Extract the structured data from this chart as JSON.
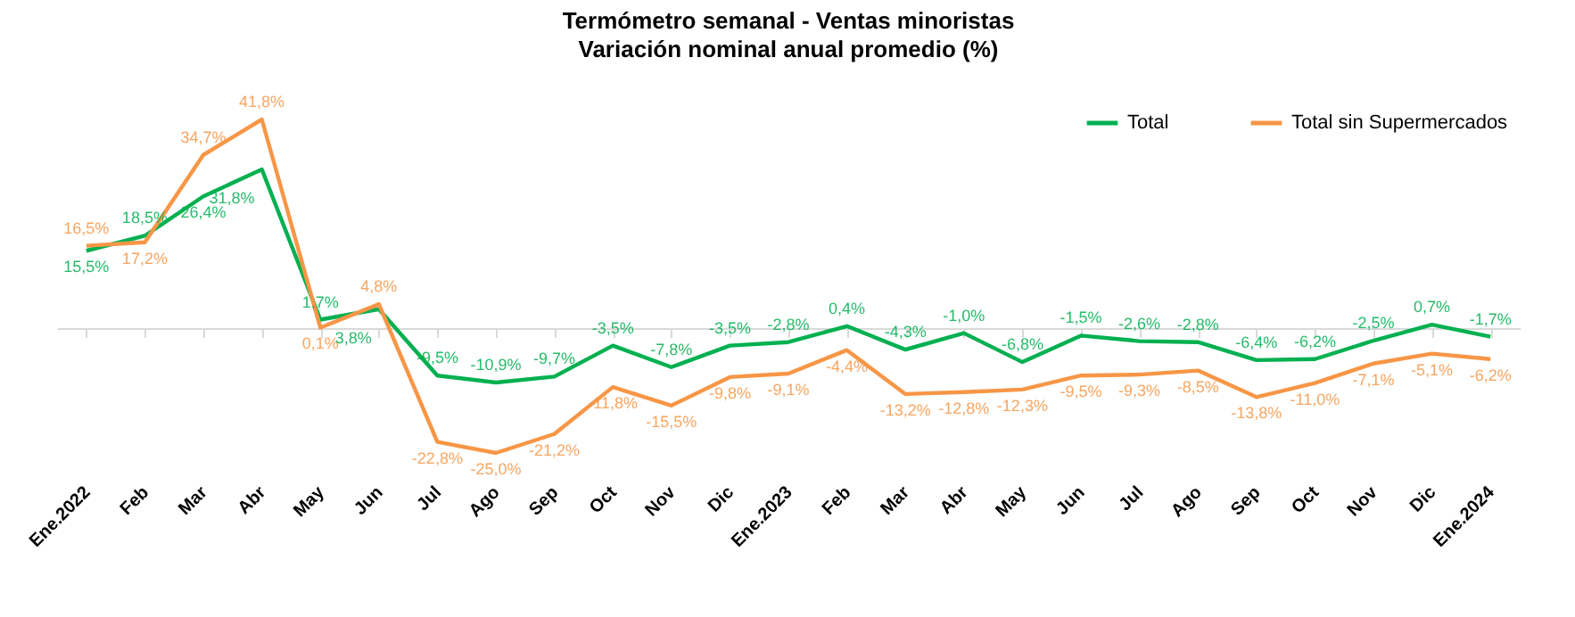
{
  "chart_data": {
    "type": "line",
    "title": "Termómetro semanal - Ventas minoristas",
    "subtitle": "Variación nominal anual promedio (%)",
    "categories": [
      "Ene.2022",
      "Feb",
      "Mar",
      "Abr",
      "May",
      "Jun",
      "Jul",
      "Ago",
      "Sep",
      "Oct",
      "Nov",
      "Dic",
      "Ene.2023",
      "Feb",
      "Mar",
      "Abr",
      "May",
      "Jun",
      "Jul",
      "Ago",
      "Sep",
      "Oct",
      "Nov",
      "Dic",
      "Ene.2024"
    ],
    "series": [
      {
        "name": "Total",
        "color": "#00b050",
        "values": [
          15.5,
          18.5,
          26.4,
          31.8,
          1.7,
          3.8,
          -9.5,
          -10.9,
          -9.7,
          -3.5,
          -7.8,
          -3.5,
          -2.8,
          0.4,
          -4.3,
          -1.0,
          -6.8,
          -1.5,
          -2.6,
          -2.8,
          -6.4,
          -6.2,
          -2.5,
          0.7,
          -1.7
        ],
        "value_labels": [
          "15,5%",
          "18,5%",
          "26,4%",
          "31,8%",
          "1,7%",
          "3,8%",
          "-9,5%",
          "-10,9%",
          "-9,7%",
          "-3,5%",
          "-7,8%",
          "-3,5%",
          "-2,8%",
          "0,4%",
          "-4,3%",
          "-1,0%",
          "-6,8%",
          "-1,5%",
          "-2,6%",
          "-2,8%",
          "-6,4%",
          "-6,2%",
          "-2,5%",
          "0,7%",
          "-1,7%"
        ]
      },
      {
        "name": "Total sin Supermercados",
        "color": "#f79646",
        "values": [
          16.5,
          17.2,
          34.7,
          41.8,
          0.1,
          4.8,
          -22.8,
          -25.0,
          -21.2,
          -11.8,
          -15.5,
          -9.8,
          -9.1,
          -4.4,
          -13.2,
          -12.8,
          -12.3,
          -9.5,
          -9.3,
          -8.5,
          -13.8,
          -11.0,
          -7.1,
          -5.1,
          -6.2
        ],
        "value_labels": [
          "16,5%",
          "17,2%",
          "34,7%",
          "41,8%",
          "0,1%",
          "4,8%",
          "-22,8%",
          "-25,0%",
          "-21,2%",
          "-11,8%",
          "-15,5%",
          "-9,8%",
          "-9,1%",
          "-4,4%",
          "-13,2%",
          "-12,8%",
          "-12,3%",
          "-9,5%",
          "-9,3%",
          "-8,5%",
          "-13,8%",
          "-11,0%",
          "-7,1%",
          "-5,1%",
          "-6,2%"
        ]
      }
    ],
    "legend": "top right"
  }
}
